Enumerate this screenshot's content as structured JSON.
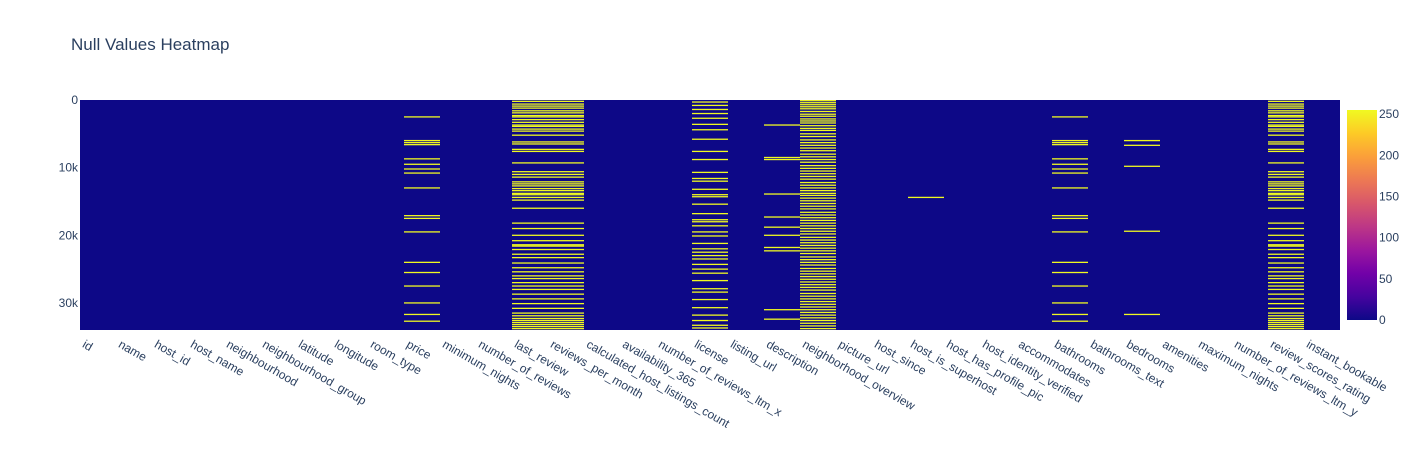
{
  "chart_data": {
    "type": "heatmap",
    "title": "Null Values Heatmap",
    "xlabel": "",
    "ylabel": "",
    "columns": [
      "id",
      "name",
      "host_id",
      "host_name",
      "neighbourhood",
      "neighbourhood_group",
      "latitude",
      "longitude",
      "room_type",
      "price",
      "minimum_nights",
      "number_of_reviews",
      "last_review",
      "reviews_per_month",
      "calculated_host_listings_count",
      "availability_365",
      "number_of_reviews_ltm_x",
      "license",
      "listing_url",
      "description",
      "neighborhood_overview",
      "picture_url",
      "host_since",
      "host_is_superhost",
      "host_has_profile_pic",
      "host_identity_verified",
      "accommodates",
      "bathrooms",
      "bathrooms_text",
      "bedrooms",
      "amenities",
      "maximum_nights",
      "number_of_reviews_ltm_y",
      "review_scores_rating",
      "instant_bookable"
    ],
    "y_range": [
      0,
      34000
    ],
    "y_ticks": [
      {
        "value": 0,
        "label": "0"
      },
      {
        "value": 10000,
        "label": "10k"
      },
      {
        "value": 20000,
        "label": "20k"
      },
      {
        "value": 30000,
        "label": "30k"
      }
    ],
    "value_range": [
      0,
      255
    ],
    "colorbar_ticks": [
      {
        "value": 0,
        "label": "0"
      },
      {
        "value": 50,
        "label": "50"
      },
      {
        "value": 100,
        "label": "100"
      },
      {
        "value": 150,
        "label": "150"
      },
      {
        "value": 200,
        "label": "200"
      },
      {
        "value": 250,
        "label": "250"
      }
    ],
    "colorscale": [
      "#0d0887",
      "#46039f",
      "#7201a8",
      "#9c179e",
      "#bd3786",
      "#d8576b",
      "#ed7953",
      "#fb9f3a",
      "#fdca26",
      "#f0f921"
    ],
    "background_color": "#0d0887",
    "null_color": "#f0f921",
    "null_rows": {
      "price": [
        2500,
        6000,
        6300,
        6600,
        8700,
        9500,
        10200,
        10800,
        13000,
        17100,
        17500,
        19500,
        24000,
        25500,
        27500,
        30000,
        31700,
        32700
      ],
      "bathrooms": [
        2500,
        6000,
        6300,
        6600,
        8700,
        9500,
        10200,
        10800,
        13000,
        17100,
        17500,
        19500,
        24000,
        25500,
        27500,
        30000,
        31700,
        32700
      ],
      "bedrooms": [
        6000,
        6700,
        9800,
        19400,
        31700
      ],
      "description": [
        3700,
        8500,
        8800,
        13900,
        17300,
        18800,
        20000,
        21800,
        22300,
        31000,
        32400
      ],
      "host_is_superhost": [
        14400
      ],
      "last_review": [
        200,
        600,
        900,
        1200,
        1600,
        1900,
        2300,
        2500,
        2900,
        3300,
        3700,
        3900,
        4300,
        4600,
        5200,
        6200,
        6500,
        7300,
        7600,
        9300,
        10600,
        11000,
        11400,
        12100,
        12400,
        12700,
        13100,
        13400,
        13800,
        14000,
        14400,
        14800,
        16000,
        18200,
        19000,
        20000,
        20800,
        21400,
        21600,
        22100,
        22800,
        23300,
        24100,
        24800,
        25400,
        26000,
        26400,
        27000,
        27500,
        28000,
        28700,
        29400,
        30100,
        30800,
        31500,
        31900,
        32300,
        32600,
        32900,
        33200,
        33500,
        33800
      ],
      "reviews_per_month": [
        200,
        600,
        900,
        1200,
        1600,
        1900,
        2300,
        2500,
        2900,
        3300,
        3700,
        3900,
        4300,
        4600,
        5200,
        6200,
        6500,
        7300,
        7600,
        9300,
        10600,
        11000,
        11400,
        12100,
        12400,
        12700,
        13100,
        13400,
        13800,
        14000,
        14400,
        14800,
        16000,
        18200,
        19000,
        20000,
        20800,
        21400,
        21600,
        22100,
        22800,
        23300,
        24100,
        24800,
        25400,
        26000,
        26400,
        27000,
        27500,
        28000,
        28700,
        29400,
        30100,
        30800,
        31500,
        31900,
        32300,
        32600,
        32900,
        33200,
        33500,
        33800
      ],
      "review_scores_rating": [
        200,
        600,
        900,
        1200,
        1600,
        1900,
        2300,
        2500,
        2900,
        3300,
        3700,
        3900,
        4300,
        4600,
        5200,
        6200,
        6500,
        7300,
        7600,
        9300,
        10600,
        11000,
        11400,
        12100,
        12400,
        12700,
        13100,
        13400,
        13800,
        14000,
        14400,
        14800,
        16000,
        18200,
        19000,
        20000,
        20800,
        21400,
        21600,
        22100,
        22800,
        23300,
        24100,
        24800,
        25400,
        26000,
        26400,
        27000,
        27500,
        28000,
        28700,
        29400,
        30100,
        30800,
        31500,
        31900,
        32300,
        32600,
        32900,
        33200,
        33500,
        33800
      ],
      "license": [
        300,
        800,
        1400,
        2000,
        2700,
        3600,
        4400,
        5800,
        7600,
        8800,
        10700,
        11600,
        12000,
        13200,
        14000,
        14300,
        15400,
        16800,
        17700,
        18000,
        18600,
        19500,
        20100,
        21200,
        22000,
        22500,
        23000,
        23500,
        24300,
        25000,
        25600,
        26700,
        27900,
        28400,
        29500,
        30700,
        31800,
        32600,
        33300,
        33700
      ],
      "neighborhood_overview": [
        100,
        400,
        700,
        1000,
        1300,
        1700,
        2100,
        2400,
        2800,
        3100,
        3400,
        3800,
        4200,
        4500,
        5000,
        5400,
        5900,
        6300,
        6700,
        7100,
        7500,
        8000,
        8400,
        8800,
        9200,
        9700,
        10100,
        10500,
        10900,
        11300,
        11700,
        12200,
        12600,
        13000,
        13400,
        13800,
        14100,
        14500,
        14900,
        15300,
        15700,
        16100,
        16600,
        17000,
        17400,
        17800,
        18200,
        18600,
        19000,
        19400,
        19800,
        20300,
        20700,
        21100,
        21500,
        21900,
        22300,
        22700,
        23200,
        23600,
        24000,
        24400,
        24900,
        25300,
        25700,
        26100,
        26500,
        26900,
        27300,
        27700,
        28100,
        28600,
        29000,
        29400,
        29800,
        30200,
        30600,
        31000,
        31400,
        31800,
        32200,
        32600,
        33000,
        33400,
        33800
      ]
    }
  }
}
